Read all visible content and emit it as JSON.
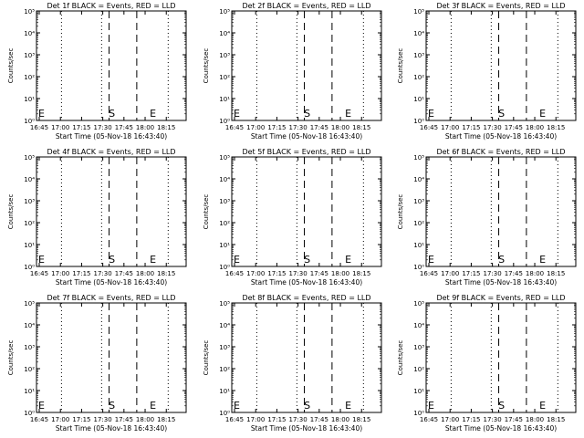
{
  "figure": {
    "background": "#ffffff",
    "ink": "#000000",
    "grid_rows": 3,
    "grid_cols": 3
  },
  "chart_data": [
    {
      "type": "line",
      "title": "Det 1f BLACK = Events, RED = LLD",
      "xlabel": "Start Time (05-Nov-18 16:43:40)",
      "ylabel": "Counts/sec",
      "yscale": "log",
      "ylim": [
        1,
        100000
      ],
      "xtick_labels": [
        "16:45",
        "17:00",
        "17:15",
        "17:30",
        "17:45",
        "18:00",
        "18:15"
      ],
      "ytick_labels": [
        "10⁰",
        "10¹",
        "10²",
        "10³",
        "10⁴",
        "10⁵"
      ],
      "annotations": [
        "E",
        "S",
        "E"
      ],
      "series": []
    },
    {
      "type": "line",
      "title": "Det 2f BLACK = Events, RED = LLD",
      "xlabel": "Start Time (05-Nov-18 16:43:40)",
      "ylabel": "Counts/sec",
      "yscale": "log",
      "ylim": [
        1,
        100000
      ],
      "xtick_labels": [
        "16:45",
        "17:00",
        "17:15",
        "17:30",
        "17:45",
        "18:00",
        "18:15"
      ],
      "ytick_labels": [
        "10⁰",
        "10¹",
        "10²",
        "10³",
        "10⁴",
        "10⁵"
      ],
      "annotations": [
        "E",
        "S",
        "E"
      ],
      "series": []
    },
    {
      "type": "line",
      "title": "Det 3f BLACK = Events, RED = LLD",
      "xlabel": "Start Time (05-Nov-18 16:43:40)",
      "ylabel": "Counts/sec",
      "yscale": "log",
      "ylim": [
        1,
        100000
      ],
      "xtick_labels": [
        "16:45",
        "17:00",
        "17:15",
        "17:30",
        "17:45",
        "18:00",
        "18:15"
      ],
      "ytick_labels": [
        "10⁰",
        "10¹",
        "10²",
        "10³",
        "10⁴",
        "10⁵"
      ],
      "annotations": [
        "E",
        "S",
        "E"
      ],
      "series": []
    },
    {
      "type": "line",
      "title": "Det 4f BLACK = Events, RED = LLD",
      "xlabel": "Start Time (05-Nov-18 16:43:40)",
      "ylabel": "Counts/sec",
      "yscale": "log",
      "ylim": [
        1,
        100000
      ],
      "xtick_labels": [
        "16:45",
        "17:00",
        "17:15",
        "17:30",
        "17:45",
        "18:00",
        "18:15"
      ],
      "ytick_labels": [
        "10⁰",
        "10¹",
        "10²",
        "10³",
        "10⁴",
        "10⁵"
      ],
      "annotations": [
        "E",
        "S",
        "E"
      ],
      "series": []
    },
    {
      "type": "line",
      "title": "Det 5f BLACK = Events, RED = LLD",
      "xlabel": "Start Time (05-Nov-18 16:43:40)",
      "ylabel": "Counts/sec",
      "yscale": "log",
      "ylim": [
        1,
        100000
      ],
      "xtick_labels": [
        "16:45",
        "17:00",
        "17:15",
        "17:30",
        "17:45",
        "18:00",
        "18:15"
      ],
      "ytick_labels": [
        "10⁰",
        "10¹",
        "10²",
        "10³",
        "10⁴",
        "10⁵"
      ],
      "annotations": [
        "E",
        "S",
        "E"
      ],
      "series": []
    },
    {
      "type": "line",
      "title": "Det 6f BLACK = Events, RED = LLD",
      "xlabel": "Start Time (05-Nov-18 16:43:40)",
      "ylabel": "Counts/sec",
      "yscale": "log",
      "ylim": [
        1,
        100000
      ],
      "xtick_labels": [
        "16:45",
        "17:00",
        "17:15",
        "17:30",
        "17:45",
        "18:00",
        "18:15"
      ],
      "ytick_labels": [
        "10⁰",
        "10¹",
        "10²",
        "10³",
        "10⁴",
        "10⁵"
      ],
      "annotations": [
        "E",
        "S",
        "E"
      ],
      "series": []
    },
    {
      "type": "line",
      "title": "Det 7f BLACK = Events, RED = LLD",
      "xlabel": "Start Time (05-Nov-18 16:43:40)",
      "ylabel": "Counts/sec",
      "yscale": "log",
      "ylim": [
        1,
        100000
      ],
      "xtick_labels": [
        "16:45",
        "17:00",
        "17:15",
        "17:30",
        "17:45",
        "18:00",
        "18:15"
      ],
      "ytick_labels": [
        "10⁰",
        "10¹",
        "10²",
        "10³",
        "10⁴",
        "10⁵"
      ],
      "annotations": [
        "E",
        "S",
        "E"
      ],
      "series": []
    },
    {
      "type": "line",
      "title": "Det 8f BLACK = Events, RED = LLD",
      "xlabel": "Start Time (05-Nov-18 16:43:40)",
      "ylabel": "Counts/sec",
      "yscale": "log",
      "ylim": [
        1,
        100000
      ],
      "xtick_labels": [
        "16:45",
        "17:00",
        "17:15",
        "17:30",
        "17:45",
        "18:00",
        "18:15"
      ],
      "ytick_labels": [
        "10⁰",
        "10¹",
        "10²",
        "10³",
        "10⁴",
        "10⁵"
      ],
      "annotations": [
        "E",
        "S",
        "E"
      ],
      "series": []
    },
    {
      "type": "line",
      "title": "Det 9f BLACK = Events, RED = LLD",
      "xlabel": "Start Time (05-Nov-18 16:43:40)",
      "ylabel": "Counts/sec",
      "yscale": "log",
      "ylim": [
        1,
        100000
      ],
      "xtick_labels": [
        "16:45",
        "17:00",
        "17:15",
        "17:30",
        "17:45",
        "18:00",
        "18:15"
      ],
      "ytick_labels": [
        "10⁰",
        "10¹",
        "10²",
        "10³",
        "10⁴",
        "10⁵"
      ],
      "annotations": [
        "E",
        "S",
        "E"
      ],
      "series": []
    }
  ]
}
